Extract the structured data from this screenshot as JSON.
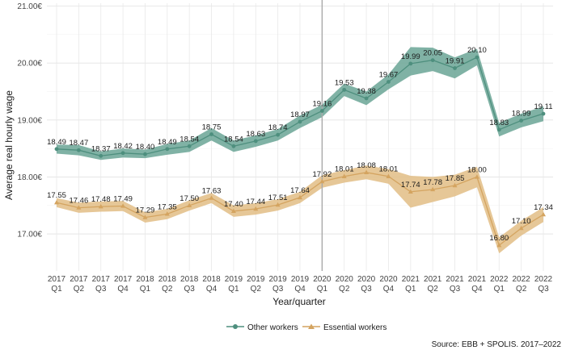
{
  "chart_data": {
    "type": "line",
    "ylabel": "Average real hourly wage",
    "xlabel": "Year/quarter",
    "ylim": [
      16.35,
      21.05
    ],
    "yticks": [
      17.0,
      18.0,
      19.0,
      20.0,
      21.0
    ],
    "ytick_labels": [
      "17.00€",
      "18.00€",
      "19.00€",
      "20.00€",
      "21.00€"
    ],
    "vline_index": 12,
    "x": [
      {
        "year": "2017",
        "q": "Q1"
      },
      {
        "year": "2017",
        "q": "Q2"
      },
      {
        "year": "2017",
        "q": "Q3"
      },
      {
        "year": "2017",
        "q": "Q4"
      },
      {
        "year": "2018",
        "q": "Q1"
      },
      {
        "year": "2018",
        "q": "Q2"
      },
      {
        "year": "2018",
        "q": "Q3"
      },
      {
        "year": "2018",
        "q": "Q4"
      },
      {
        "year": "2019",
        "q": "Q1"
      },
      {
        "year": "2019",
        "q": "Q2"
      },
      {
        "year": "2019",
        "q": "Q3"
      },
      {
        "year": "2019",
        "q": "Q4"
      },
      {
        "year": "2020",
        "q": "Q1"
      },
      {
        "year": "2020",
        "q": "Q2"
      },
      {
        "year": "2020",
        "q": "Q3"
      },
      {
        "year": "2020",
        "q": "Q4"
      },
      {
        "year": "2021",
        "q": "Q1"
      },
      {
        "year": "2021",
        "q": "Q2"
      },
      {
        "year": "2021",
        "q": "Q3"
      },
      {
        "year": "2021",
        "q": "Q4"
      },
      {
        "year": "2022",
        "q": "Q1"
      },
      {
        "year": "2022",
        "q": "Q2"
      },
      {
        "year": "2022",
        "q": "Q3"
      }
    ],
    "series": [
      {
        "name": "Other workers",
        "color": "#4e8f7e",
        "fill": "#6aa595",
        "marker": "circle",
        "values": [
          18.49,
          18.47,
          18.37,
          18.42,
          18.4,
          18.49,
          18.54,
          18.75,
          18.54,
          18.63,
          18.74,
          18.97,
          19.16,
          19.53,
          19.38,
          19.67,
          19.99,
          20.05,
          19.91,
          20.1,
          18.83,
          18.99,
          19.11
        ],
        "labels": [
          "18.49",
          "18.47",
          "18.37",
          "18.42",
          "18.40",
          "18.49",
          "18.54",
          "18.75",
          "18.54",
          "18.63",
          "18.74",
          "18.97",
          "19.16",
          "19.53",
          "19.38",
          "19.67",
          "19.99",
          "20.05",
          "19.91",
          "20.10",
          "18.83",
          "18.99",
          "19.11"
        ],
        "lower": [
          18.41,
          18.38,
          18.3,
          18.34,
          18.33,
          18.39,
          18.44,
          18.64,
          18.44,
          18.53,
          18.64,
          18.86,
          19.05,
          19.42,
          19.26,
          19.54,
          19.78,
          19.86,
          19.73,
          19.96,
          18.71,
          18.87,
          18.98
        ],
        "upper": [
          18.57,
          18.56,
          18.45,
          18.5,
          18.48,
          18.58,
          18.64,
          18.86,
          18.64,
          18.73,
          18.84,
          19.08,
          19.27,
          19.64,
          19.5,
          19.8,
          20.28,
          20.27,
          20.1,
          20.25,
          18.95,
          19.11,
          19.24
        ]
      },
      {
        "name": "Essential workers",
        "color": "#d4a460",
        "fill": "#e2bd85",
        "marker": "triangle",
        "values": [
          17.55,
          17.46,
          17.48,
          17.49,
          17.29,
          17.35,
          17.5,
          17.63,
          17.4,
          17.44,
          17.51,
          17.64,
          17.92,
          18.01,
          18.08,
          18.01,
          17.74,
          17.78,
          17.85,
          18.0,
          16.8,
          17.1,
          17.34
        ],
        "labels": [
          "17.55",
          "17.46",
          "17.48",
          "17.49",
          "17.29",
          "17.35",
          "17.50",
          "17.63",
          "17.40",
          "17.44",
          "17.51",
          "17.64",
          "17.92",
          "18.01",
          "18.08",
          "18.01",
          "17.74",
          "17.78",
          "17.85",
          "18.00",
          "16.80",
          "17.10",
          "17.34"
        ],
        "lower": [
          17.47,
          17.37,
          17.39,
          17.4,
          17.2,
          17.26,
          17.41,
          17.54,
          17.3,
          17.34,
          17.41,
          17.54,
          17.81,
          17.9,
          17.96,
          17.88,
          17.46,
          17.56,
          17.66,
          17.82,
          16.66,
          16.97,
          17.21
        ],
        "upper": [
          17.63,
          17.55,
          17.57,
          17.58,
          17.38,
          17.44,
          17.59,
          17.72,
          17.5,
          17.54,
          17.61,
          17.74,
          18.03,
          18.12,
          18.2,
          18.14,
          18.02,
          18.0,
          18.04,
          18.18,
          16.94,
          17.23,
          17.47
        ]
      }
    ],
    "legend": {
      "position": "bottom"
    },
    "source": "Source: EBB + SPOLIS. 2017–2022"
  }
}
